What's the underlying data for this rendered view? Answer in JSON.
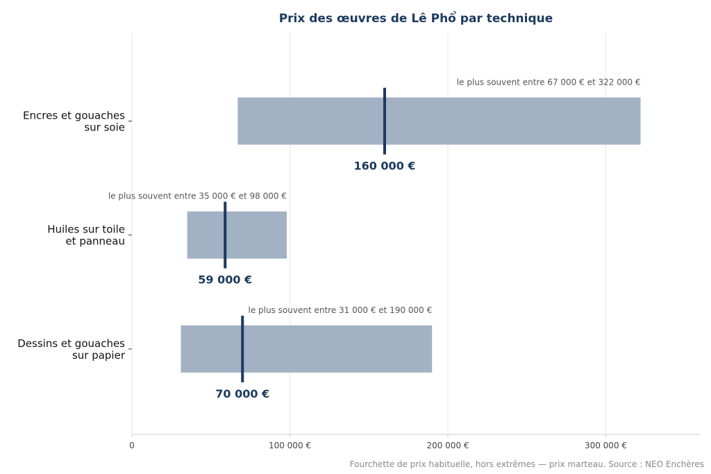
{
  "chart_data": {
    "type": "bar",
    "title": "Prix des œuvres de Lê Phổ par technique",
    "xlabel": "",
    "ylabel": "",
    "xlim": [
      0,
      360000
    ],
    "x_ticks": [
      {
        "value": 0,
        "label": "0"
      },
      {
        "value": 100000,
        "label": "100 000 €"
      },
      {
        "value": 200000,
        "label": "200 000 €"
      },
      {
        "value": 300000,
        "label": "300 000 €"
      }
    ],
    "grid": "vertical",
    "categories": [
      {
        "label_lines": [
          "Encres et gouaches",
          "sur soie"
        ],
        "low": 67000,
        "high": 322000,
        "median": 160000,
        "range_label": "le plus souvent entre 67 000 € et 322 000 €",
        "median_label": "160 000 €"
      },
      {
        "label_lines": [
          "Huiles sur toile",
          "et panneau"
        ],
        "low": 35000,
        "high": 98000,
        "median": 59000,
        "range_label": "le plus souvent entre 35 000 € et 98 000 €",
        "median_label": "59 000 €"
      },
      {
        "label_lines": [
          "Dessins et gouaches",
          "sur papier"
        ],
        "low": 31000,
        "high": 190000,
        "median": 70000,
        "range_label": "le plus souvent entre 31 000 € et 190 000 €",
        "median_label": "70 000 €"
      }
    ],
    "footnote": "Fourchette de prix habituelle, hors extrêmes — prix marteau. Source : NEO Enchères",
    "colors": {
      "bar": "#a3b1c5",
      "median": "#1c3a5e",
      "title": "#1c3a5e",
      "grid": "#e6e6e6",
      "axis": "#cccccc"
    }
  }
}
